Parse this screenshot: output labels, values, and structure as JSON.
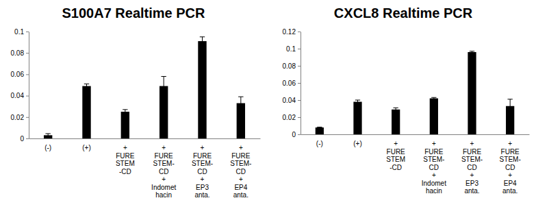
{
  "chart_data": [
    {
      "type": "bar",
      "title": "S100A7 Realtime PCR",
      "categories": [
        "(-)",
        "(+)",
        "+\nFURE\nSTEM\n-CD",
        "+\nFURE\nSTEM-\nCD\n+\nIndomet\nhacin",
        "+\nFURE\nSTEM-\nCD\n+\nEP3\nanta.",
        "+\nFURE\nSTEM-\nCD\n+\nEP4\nanta."
      ],
      "values": [
        0.003,
        0.049,
        0.025,
        0.049,
        0.091,
        0.033
      ],
      "errors": [
        0.0015,
        0.002,
        0.002,
        0.009,
        0.004,
        0.006
      ],
      "color": "#000000",
      "ylim": [
        0,
        0.1
      ],
      "yticks": [
        0,
        0.02,
        0.04,
        0.06,
        0.08,
        0.1
      ],
      "grid": false
    },
    {
      "type": "bar",
      "title": "CXCL8 Realtime PCR",
      "categories": [
        "(-)",
        "(+)",
        "+\nFURE\nSTEM\n-CD",
        "+\nFURE\nSTEM-\nCD\n+\nIndomet\nhacin",
        "+\nFURE\nSTEM-\nCD\n+\nEP3\nanta.",
        "+\nFURE\nSTEM-\nCD\n+\nEP4\nanta."
      ],
      "values": [
        0.008,
        0.038,
        0.029,
        0.042,
        0.096,
        0.033
      ],
      "errors": [
        0.0005,
        0.002,
        0.002,
        0.001,
        0.001,
        0.008
      ],
      "color": "#000000",
      "ylim": [
        0,
        0.12
      ],
      "yticks": [
        0,
        0.02,
        0.04,
        0.06,
        0.08,
        0.1,
        0.12
      ],
      "grid": false
    }
  ]
}
